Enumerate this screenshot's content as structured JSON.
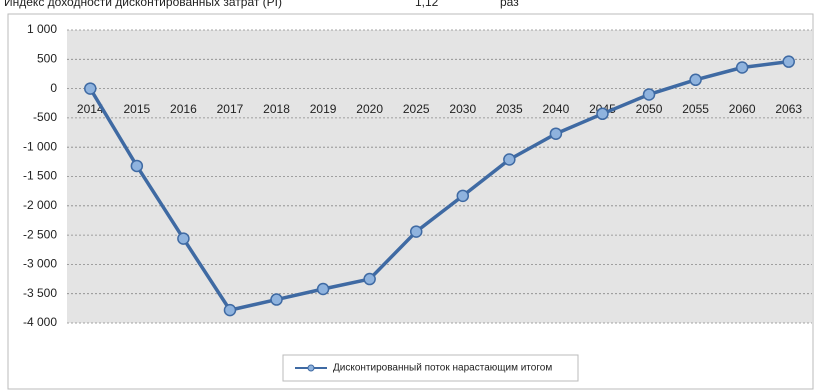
{
  "header": {
    "label": "Индекс доходности дисконтированных затрат (PI)",
    "value": "1,12",
    "unit": "раз"
  },
  "chart_data": {
    "type": "line",
    "categories": [
      "2014",
      "2015",
      "2016",
      "2017",
      "2018",
      "2019",
      "2020",
      "2025",
      "2030",
      "2035",
      "2040",
      "2045",
      "2050",
      "2055",
      "2060",
      "2063"
    ],
    "series": [
      {
        "name": "Дисконтированный поток нарастающим итогом",
        "color": "#3f6aa3",
        "values": [
          0,
          -1320,
          -2560,
          -3780,
          -3600,
          -3420,
          -3250,
          -2440,
          -1830,
          -1210,
          -770,
          -430,
          -100,
          150,
          360,
          460
        ]
      }
    ],
    "ylim": [
      -4000,
      1000
    ],
    "yticks": [
      {
        "value": -4000,
        "label": "-4 000"
      },
      {
        "value": -3500,
        "label": "-3 500"
      },
      {
        "value": -3000,
        "label": "-3 000"
      },
      {
        "value": -2500,
        "label": "-2 500"
      },
      {
        "value": -2000,
        "label": "-2 000"
      },
      {
        "value": -1500,
        "label": "-1 500"
      },
      {
        "value": -1000,
        "label": "-1 000"
      },
      -500,
      0,
      500,
      {
        "value": 1000,
        "label": "1 000"
      }
    ],
    "grid": true,
    "legend": "bottom"
  }
}
